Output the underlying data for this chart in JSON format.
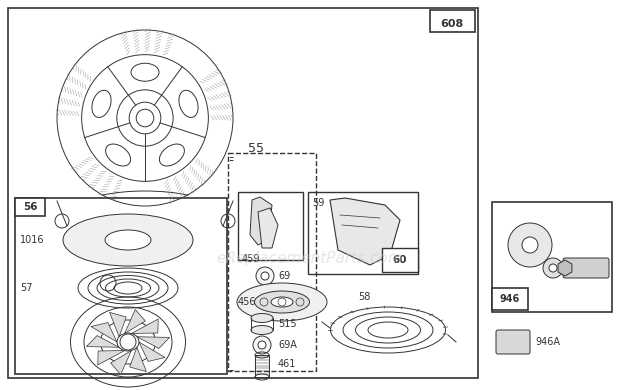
{
  "bg_color": "#ffffff",
  "border_color": "#333333",
  "watermark": "eReplacementParts.com",
  "watermark_color": "#cccccc",
  "fig_w": 6.2,
  "fig_h": 3.9
}
